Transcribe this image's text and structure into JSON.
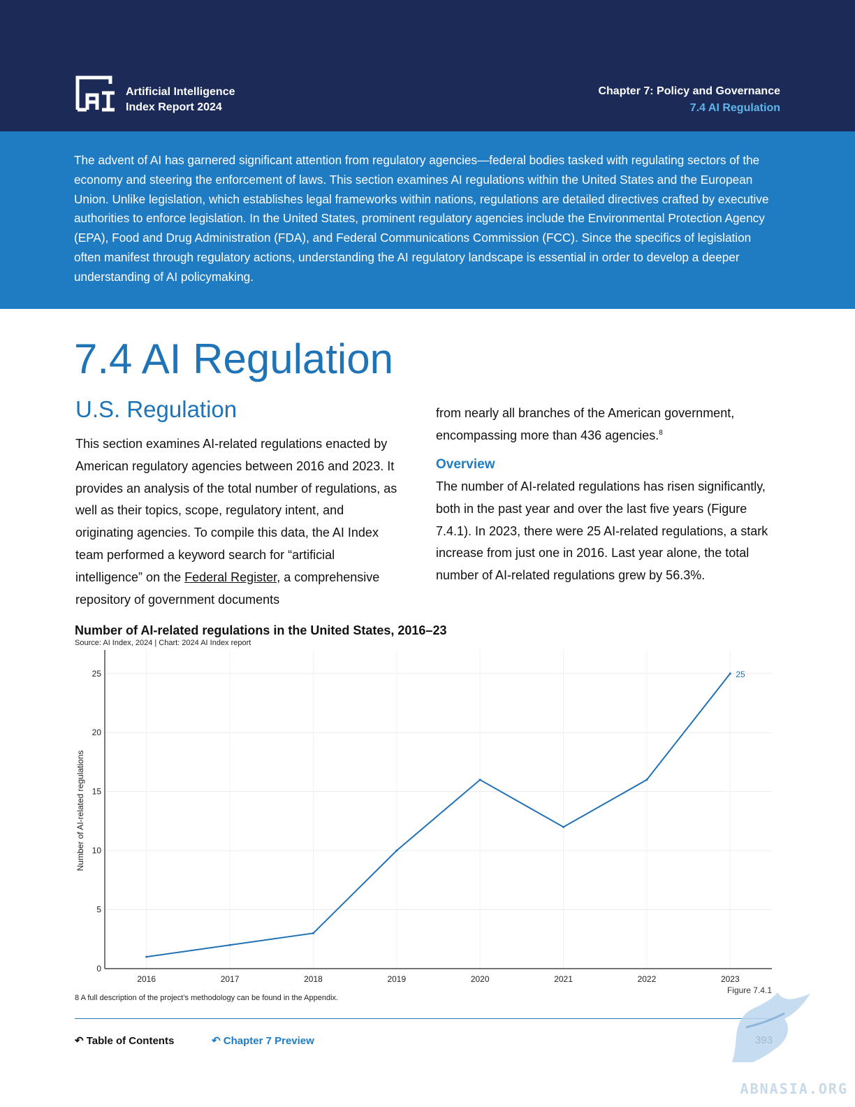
{
  "header": {
    "brand_line1": "Artificial Intelligence",
    "brand_line2": "Index Report 2024",
    "chapter": "Chapter 7: Policy and Governance",
    "section": "7.4 AI Regulation"
  },
  "intro": "The advent of AI has garnered significant attention from regulatory agencies—federal bodies tasked with regulating sectors of the economy and steering the enforcement of laws. This section examines AI regulations within the United States and the European Union. Unlike legislation, which establishes legal frameworks within nations, regulations are detailed directives crafted by executive authorities to enforce legislation. In the United States, prominent regulatory agencies include the Environmental Protection Agency (EPA), Food and Drug Administration (FDA), and Federal Communications Commission (FCC). Since the specifics of legislation often manifest through regulatory actions, understanding the AI regulatory landscape is essential in order to develop a deeper understanding of AI policymaking.",
  "page_title": "7.4 AI Regulation",
  "sub_title": "U.S. Regulation",
  "left_text_a": "This section examines AI-related regulations enacted by American regulatory agencies between 2016 and 2023. It provides an analysis of the total number of regulations, as well as their topics, scope, regulatory intent, and originating agencies. To compile this data, the AI Index team performed a keyword search for “artificial intelligence” on the ",
  "left_link": "Federal Register",
  "left_text_b": ", a comprehensive repository of government documents",
  "right_top_text": "from nearly all branches of the American government, encompassing more than 436 agencies.",
  "right_top_sup": "8",
  "overview_heading": "Overview",
  "overview_text": "The number of AI-related regulations has risen significantly, both in the past year and over the last five years (Figure 7.4.1). In 2023, there were 25 AI-related regulations, a stark increase from just one in 2016. Last year alone, the total number of AI-related regulations grew by 56.3%.",
  "chart_data": {
    "type": "line",
    "title": "Number of AI-related regulations in the United States, 2016–23",
    "source": "Source: AI Index, 2024 | Chart: 2024 AI Index report",
    "ylabel": "Number of AI-related regulations",
    "xlabel": "",
    "x": [
      "2016",
      "2017",
      "2018",
      "2019",
      "2020",
      "2021",
      "2022",
      "2023"
    ],
    "series": [
      {
        "values": [
          1,
          2,
          3,
          10,
          16,
          12,
          16,
          25
        ]
      }
    ],
    "ylim": [
      0,
      27
    ],
    "yticks": [
      0,
      5,
      10,
      15,
      20,
      25
    ],
    "end_label": "25",
    "line_color": "#2171b5",
    "grid": true
  },
  "figure_label": "Figure 7.4.1",
  "footnote": "8 A full description of the project’s methodology can be found in the Appendix.",
  "footer": {
    "toc": "Table of Contents",
    "chapter_preview": "Chapter 7 Preview",
    "page_number": "393"
  },
  "watermark": "ABNASIA.ORG",
  "colors": {
    "navy": "#1b2a57",
    "blue_band": "#1f7bc2",
    "title_blue": "#1f74b8",
    "accent_cyan": "#5fb4ea"
  }
}
